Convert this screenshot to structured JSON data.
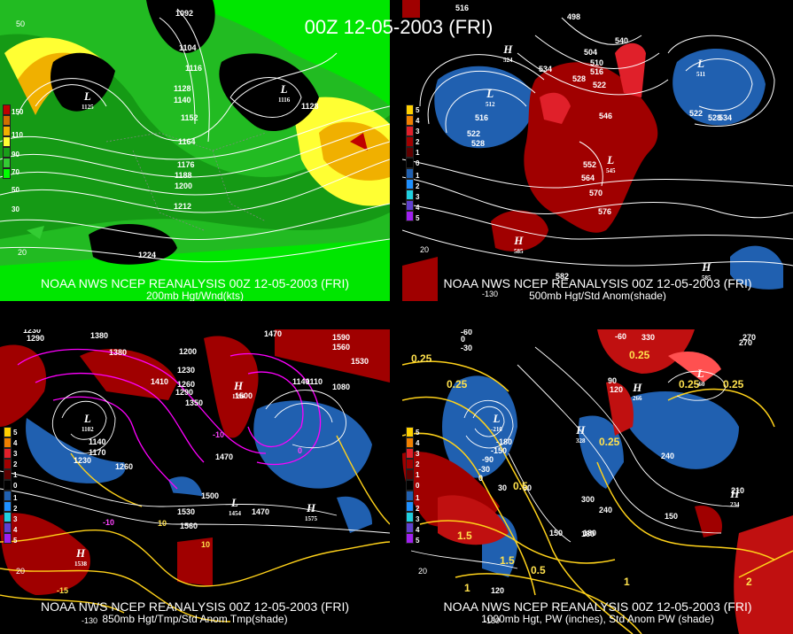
{
  "title": "00Z 12-05-2003 (FRI)",
  "panels": [
    {
      "caption1": "NOAA NWS NCEP REANALYSIS 00Z 12-05-2003 (FRI)",
      "caption2": "200mb Hgt/Wnd(kts)",
      "legend": [
        "30",
        "50",
        "70",
        "90",
        "110",
        "130",
        "150"
      ],
      "legend_colors": [
        "#00ff00",
        "#33cc33",
        "#199f19",
        "#ffff33",
        "#f0b000",
        "#d07000",
        "#c00000"
      ],
      "contours": [
        "1092",
        "1104",
        "1116",
        "1128",
        "1140",
        "1152",
        "1164",
        "1176",
        "1188",
        "1200",
        "1212",
        "1224",
        "1128"
      ],
      "lows": [
        {
          "sym": "L",
          "val": "1125"
        },
        {
          "sym": "L",
          "val": "1116"
        }
      ],
      "ticks": [
        "50",
        "20"
      ]
    },
    {
      "caption1": "NOAA NWS NCEP REANALYSIS 00Z 12-05-2003 (FRI)",
      "caption2": "500mb Hgt/Std Anom(shade)",
      "legend": [
        "5",
        "4",
        "3",
        "2",
        "1",
        "0",
        "1",
        "2",
        "3",
        "4",
        "5"
      ],
      "contours": [
        "516",
        "498",
        "504",
        "510",
        "516",
        "522",
        "528",
        "534",
        "540",
        "546",
        "552",
        "558",
        "564",
        "570",
        "576",
        "582",
        "522",
        "528",
        "534",
        "516",
        "522",
        "528"
      ],
      "lows": [
        {
          "sym": "L",
          "val": "512"
        },
        {
          "sym": "L",
          "val": "511"
        },
        {
          "sym": "L",
          "val": "545"
        }
      ],
      "highs": [
        {
          "sym": "H",
          "val": "524"
        },
        {
          "sym": "H",
          "val": "585"
        },
        {
          "sym": "H",
          "val": "585"
        }
      ],
      "ticks": [
        "20",
        "-130"
      ]
    },
    {
      "caption1": "NOAA NWS NCEP REANALYSIS 00Z 12-05-2003 (FRI)",
      "caption2": "850mb Hgt/Tmp/Std Anom Tmp(shade)",
      "legend": [
        "5",
        "4",
        "3",
        "2",
        "1",
        "0",
        "1",
        "2",
        "3",
        "4",
        "5"
      ],
      "contours": [
        "1290",
        "1230",
        "1380",
        "1380",
        "1410",
        "1200",
        "1230",
        "1260",
        "1290",
        "1350",
        "1500",
        "1470",
        "1590",
        "1560",
        "1530",
        "1140",
        "1170",
        "1230",
        "1260",
        "1140",
        "1110",
        "1080",
        "1470",
        "1500",
        "1530",
        "1560",
        "1590",
        "1470"
      ],
      "isotherms": [
        "-10",
        "0",
        "10",
        "-10",
        "10",
        "-15"
      ],
      "lows": [
        {
          "sym": "L",
          "val": "1102"
        },
        {
          "sym": "L",
          "val": "1454"
        }
      ],
      "highs": [
        {
          "sym": "H",
          "val": "1538"
        },
        {
          "sym": "H",
          "val": "1575"
        },
        {
          "sym": "H",
          "val": "1596"
        }
      ],
      "ticks": [
        "20",
        "-130"
      ]
    },
    {
      "caption1": "NOAA NWS NCEP REANALYSIS 00Z 12-05-2003 (FRI)",
      "caption2": "1000mb Hgt, PW (inches), Std Anom PW (shade)",
      "legend": [
        "5",
        "4",
        "3",
        "2",
        "1",
        "0",
        "1",
        "2",
        "3",
        "4",
        "5"
      ],
      "contours": [
        "-60",
        "-30",
        "0",
        "-180",
        "-150",
        "-90",
        "-30",
        "0",
        "30",
        "60",
        "90",
        "120",
        "150",
        "180",
        "210",
        "240",
        "270",
        "300",
        "330",
        "150",
        "180",
        "210",
        "240",
        "270",
        "240",
        "210",
        "150",
        "120",
        "-60"
      ],
      "pw": [
        "0.25",
        "0.25",
        "0.25",
        "0.25",
        "0.5",
        "0.5",
        "1",
        "1",
        "1.5",
        "1.5",
        "2",
        "0.25",
        "0.25"
      ],
      "lows": [
        {
          "sym": "L",
          "val": "-210"
        },
        {
          "sym": "L",
          "val": "-60"
        }
      ],
      "highs": [
        {
          "sym": "H",
          "val": "328"
        },
        {
          "sym": "H",
          "val": "266"
        },
        {
          "sym": "H",
          "val": "234"
        }
      ],
      "ticks": [
        "20",
        "-130"
      ]
    }
  ]
}
